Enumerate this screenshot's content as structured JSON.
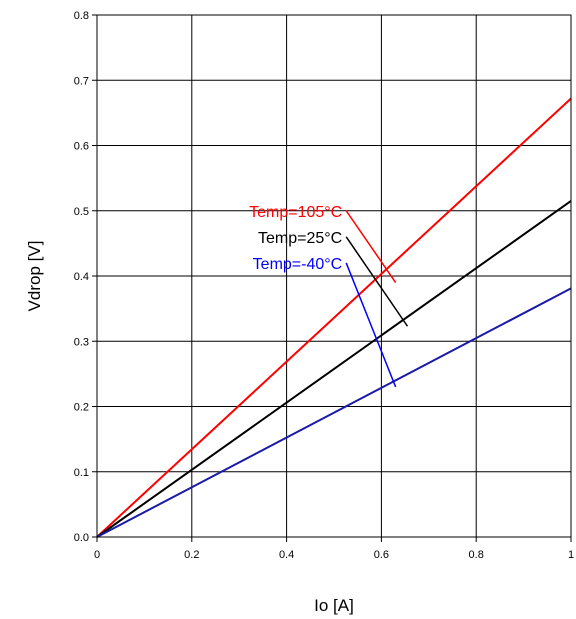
{
  "chart_data": {
    "type": "line",
    "xlabel": "Io [A]",
    "ylabel": "Vdrop  [V]",
    "xlim": [
      0,
      1
    ],
    "ylim": [
      0,
      0.8
    ],
    "x_ticks": [
      0,
      0.2,
      0.4,
      0.6,
      0.8,
      1
    ],
    "x_tick_labels": [
      "0",
      "0.2",
      "0.4",
      "0.6",
      "0.8",
      "1"
    ],
    "y_ticks": [
      0,
      0.1,
      0.2,
      0.3,
      0.4,
      0.5,
      0.6,
      0.7,
      0.8
    ],
    "y_tick_labels": [
      "0.0",
      "0.1",
      "0.2",
      "0.3",
      "0.4",
      "0.5",
      "0.6",
      "0.7",
      "0.8"
    ],
    "grid": true,
    "series": [
      {
        "name": "Temp=105°C",
        "color": "#ff0000",
        "x": [
          0,
          1
        ],
        "y": [
          0,
          0.672
        ]
      },
      {
        "name": "Temp=25°C",
        "color": "#000000",
        "x": [
          0,
          1
        ],
        "y": [
          0,
          0.515
        ]
      },
      {
        "name": "Temp=-40°C",
        "color": "#1a1aaa",
        "x": [
          0,
          1
        ],
        "y": [
          0,
          0.381
        ]
      }
    ],
    "annotations": [
      {
        "text": "Temp=105°C",
        "color": "#ff0000",
        "line_color": "#ff0000",
        "from": [
          0.53,
          0.5
        ],
        "to": [
          0.63,
          0.39
        ]
      },
      {
        "text": "Temp=25°C",
        "color": "#000000",
        "line_color": "#000000",
        "from": [
          0.53,
          0.46
        ],
        "to": [
          0.655,
          0.323
        ]
      },
      {
        "text": "Temp=-40°C",
        "color": "#0000ff",
        "line_color": "#0000ff",
        "from": [
          0.53,
          0.42
        ],
        "to": [
          0.63,
          0.23
        ]
      }
    ]
  }
}
